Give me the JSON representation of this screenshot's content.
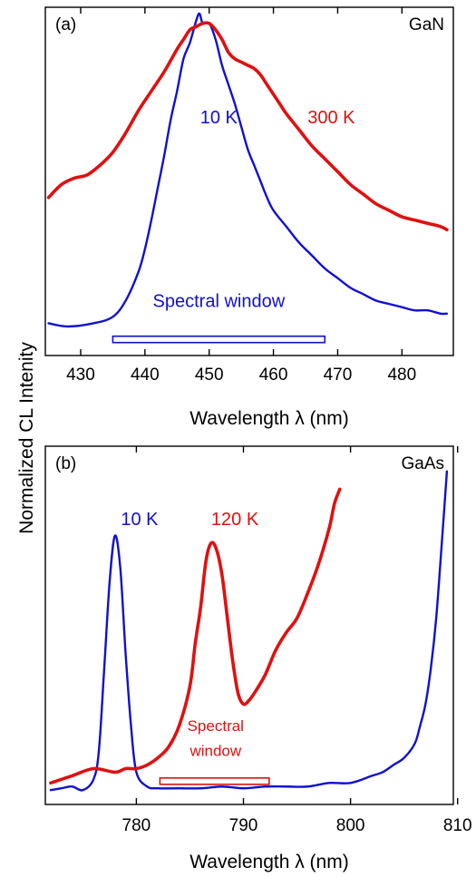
{
  "figure": {
    "ylabel": "Normalized CL Intenity"
  },
  "chart_data": [
    {
      "type": "line",
      "panel_label": "(a)",
      "material": "GaN",
      "xlabel": "Wavelength λ (nm)",
      "xlim": [
        424.5,
        488
      ],
      "ylim": [
        0,
        1.08
      ],
      "xticks": [
        430,
        440,
        450,
        460,
        470,
        480
      ],
      "y_ticks_shown": false,
      "series": [
        {
          "name": "10 K",
          "color": "#1010d0",
          "x": [
            425,
            428,
            432,
            435,
            437,
            439,
            440,
            441,
            442,
            443,
            444,
            445,
            446,
            447,
            448,
            448.5,
            449,
            450,
            451,
            452,
            453,
            454,
            455,
            456,
            457,
            458,
            459,
            460,
            462,
            464,
            466,
            468,
            470,
            472,
            474,
            476,
            478,
            480,
            482,
            484,
            486,
            487
          ],
          "y": [
            0.1,
            0.09,
            0.1,
            0.12,
            0.17,
            0.26,
            0.33,
            0.42,
            0.52,
            0.62,
            0.73,
            0.82,
            0.92,
            0.97,
            1.04,
            1.06,
            1.03,
            1.03,
            0.98,
            0.9,
            0.84,
            0.78,
            0.71,
            0.64,
            0.59,
            0.54,
            0.49,
            0.45,
            0.4,
            0.35,
            0.31,
            0.27,
            0.24,
            0.21,
            0.19,
            0.17,
            0.16,
            0.15,
            0.14,
            0.14,
            0.13,
            0.13
          ]
        },
        {
          "name": "300 K",
          "color": "#e01010",
          "x": [
            425,
            427,
            429,
            431,
            433,
            435,
            437,
            439,
            441,
            443,
            445,
            446,
            447,
            448,
            449,
            450,
            451,
            452,
            453,
            454,
            455,
            456,
            457,
            458,
            459,
            460,
            461,
            462,
            464,
            466,
            468,
            470,
            472,
            474,
            476,
            478,
            480,
            482,
            484,
            486,
            487
          ],
          "y": [
            0.49,
            0.53,
            0.55,
            0.56,
            0.59,
            0.63,
            0.69,
            0.76,
            0.82,
            0.88,
            0.95,
            0.98,
            1.01,
            1.02,
            1.03,
            1.03,
            1.01,
            0.98,
            0.94,
            0.92,
            0.91,
            0.9,
            0.89,
            0.87,
            0.84,
            0.81,
            0.78,
            0.75,
            0.7,
            0.65,
            0.61,
            0.57,
            0.53,
            0.5,
            0.47,
            0.45,
            0.43,
            0.42,
            0.41,
            0.4,
            0.39
          ]
        }
      ],
      "annotations": [
        {
          "text": "10 K",
          "x": 451.5,
          "y": 0.72,
          "color": "#1010d0"
        },
        {
          "text": "300 K",
          "x": 469,
          "y": 0.72,
          "color": "#e01010"
        },
        {
          "text": "Spectral window",
          "x": 451.5,
          "y": 0.15,
          "color": "#1010d0"
        }
      ],
      "spectral_window": {
        "x0": 435,
        "x1": 468,
        "color": "#1010d0"
      }
    },
    {
      "type": "line",
      "panel_label": "(b)",
      "material": "GaAs",
      "xlabel": "Wavelength λ (nm)",
      "xlim": [
        771.5,
        809.6
      ],
      "ylim": [
        0,
        1.0
      ],
      "xticks": [
        780,
        790,
        800,
        810
      ],
      "y_ticks_shown": false,
      "series": [
        {
          "name": "10 K",
          "color": "#1010d0",
          "x": [
            772,
            773,
            774,
            775,
            776,
            776.5,
            777,
            777.5,
            778,
            778.5,
            779,
            779.5,
            780,
            781,
            782,
            784,
            786,
            788,
            790,
            792,
            794,
            796,
            798,
            800,
            802,
            803,
            804,
            805,
            806,
            806.5,
            807,
            807.5,
            808,
            808.5,
            809
          ],
          "y": [
            0.04,
            0.045,
            0.05,
            0.04,
            0.07,
            0.15,
            0.38,
            0.62,
            0.75,
            0.66,
            0.42,
            0.22,
            0.09,
            0.05,
            0.045,
            0.045,
            0.045,
            0.05,
            0.045,
            0.05,
            0.05,
            0.05,
            0.06,
            0.06,
            0.08,
            0.09,
            0.11,
            0.13,
            0.17,
            0.22,
            0.28,
            0.38,
            0.52,
            0.72,
            0.93
          ]
        },
        {
          "name": "120 K",
          "color": "#e01010",
          "x": [
            772,
            774,
            776,
            778,
            779,
            780,
            781,
            782,
            783,
            784,
            785,
            785.5,
            786,
            786.5,
            787,
            787.5,
            788,
            788.5,
            789,
            789.5,
            790,
            790.5,
            791,
            792,
            793,
            794,
            795,
            796,
            797,
            798,
            798.5,
            799
          ],
          "y": [
            0.06,
            0.08,
            0.1,
            0.09,
            0.1,
            0.1,
            0.11,
            0.13,
            0.16,
            0.22,
            0.33,
            0.45,
            0.55,
            0.68,
            0.73,
            0.71,
            0.64,
            0.52,
            0.4,
            0.31,
            0.28,
            0.29,
            0.31,
            0.36,
            0.43,
            0.48,
            0.52,
            0.59,
            0.67,
            0.77,
            0.84,
            0.88
          ]
        }
      ],
      "annotations": [
        {
          "text": "10 K",
          "x": 780.3,
          "y": 0.78,
          "color": "#1010d0"
        },
        {
          "text": "120 K",
          "x": 789.2,
          "y": 0.78,
          "color": "#e01010"
        },
        {
          "text": "Spectral",
          "x": 787.4,
          "y": 0.205,
          "color": "#e01010"
        },
        {
          "text": "window",
          "x": 787.4,
          "y": 0.135,
          "color": "#e01010"
        }
      ],
      "spectral_window": {
        "x0": 782.2,
        "x1": 792.4,
        "color": "#e01010"
      }
    }
  ]
}
